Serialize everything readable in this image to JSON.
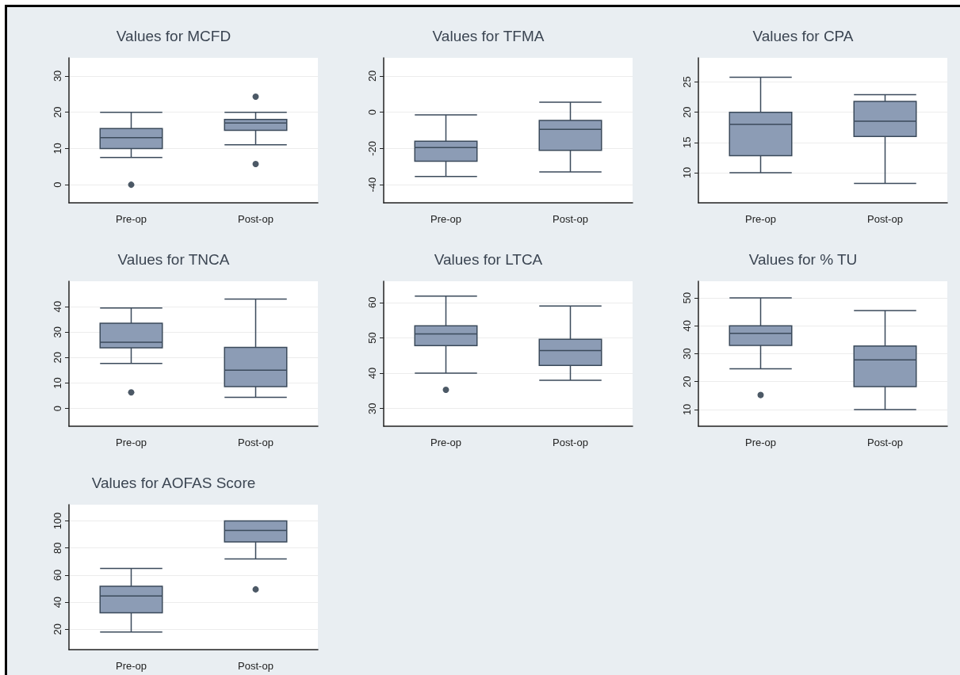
{
  "chart_data": [
    {
      "type": "box",
      "title": "Values for MCFD",
      "categories": [
        "Pre-op",
        "Post-op"
      ],
      "color": "#8c9cb5",
      "grid": "y",
      "ylim": [
        -5,
        35
      ],
      "yticks": [
        0,
        10,
        20,
        30
      ],
      "boxes": [
        {
          "low": 7.5,
          "q1": 10,
          "median": 13,
          "q3": 15.5,
          "high": 20,
          "outliers": [
            0
          ]
        },
        {
          "low": 11,
          "q1": 15,
          "median": 17,
          "q3": 18,
          "high": 20,
          "outliers": [
            24.3,
            5.7
          ]
        }
      ]
    },
    {
      "type": "box",
      "title": "Values for TFMA",
      "categories": [
        "Pre-op",
        "Post-op"
      ],
      "color": "#8c9cb5",
      "grid": "y",
      "ylim": [
        -50,
        30
      ],
      "yticks": [
        -40,
        -20,
        0,
        20
      ],
      "boxes": [
        {
          "low": -35.5,
          "q1": -27,
          "median": -19.5,
          "q3": -16,
          "high": -1.5
        },
        {
          "low": -33,
          "q1": -21,
          "median": -9.5,
          "q3": -4.5,
          "high": 5.5
        }
      ]
    },
    {
      "type": "box",
      "title": "Values for CPA",
      "categories": [
        "Pre-op",
        "Post-op"
      ],
      "color": "#8c9cb5",
      "grid": "y",
      "ylim": [
        5,
        29
      ],
      "yticks": [
        10,
        15,
        20,
        25
      ],
      "boxes": [
        {
          "low": 10,
          "q1": 12.8,
          "median": 18,
          "q3": 20,
          "high": 25.8
        },
        {
          "low": 8.2,
          "q1": 16,
          "median": 18.5,
          "q3": 21.8,
          "high": 22.9
        }
      ]
    },
    {
      "type": "box",
      "title": "Values for TNCA",
      "categories": [
        "Pre-op",
        "Post-op"
      ],
      "color": "#8c9cb5",
      "grid": "y",
      "ylim": [
        -7,
        50
      ],
      "yticks": [
        0,
        10,
        20,
        30,
        40
      ],
      "boxes": [
        {
          "low": 17.7,
          "q1": 23.8,
          "median": 26,
          "q3": 33.5,
          "high": 39.5,
          "outliers": [
            6.3
          ]
        },
        {
          "low": 4.4,
          "q1": 8.6,
          "median": 15,
          "q3": 24,
          "high": 43
        }
      ]
    },
    {
      "type": "box",
      "title": "Values for LTCA",
      "categories": [
        "Pre-op",
        "Post-op"
      ],
      "color": "#8c9cb5",
      "grid": "y",
      "ylim": [
        25,
        66
      ],
      "yticks": [
        30,
        40,
        50,
        60
      ],
      "boxes": [
        {
          "low": 40,
          "q1": 47.8,
          "median": 51.1,
          "q3": 53.4,
          "high": 61.8,
          "outliers": [
            35.3
          ]
        },
        {
          "low": 38,
          "q1": 42.2,
          "median": 46.4,
          "q3": 49.6,
          "high": 59
        }
      ]
    },
    {
      "type": "box",
      "title": "Values for % TU",
      "categories": [
        "Pre-op",
        "Post-op"
      ],
      "color": "#8c9cb5",
      "grid": "y",
      "ylim": [
        4,
        56
      ],
      "yticks": [
        10,
        20,
        30,
        40,
        50
      ],
      "boxes": [
        {
          "low": 24.6,
          "q1": 33,
          "median": 37.3,
          "q3": 40,
          "high": 50,
          "outliers": [
            15.2
          ]
        },
        {
          "low": 10,
          "q1": 18.2,
          "median": 27.8,
          "q3": 32.8,
          "high": 45.5
        }
      ]
    },
    {
      "type": "box",
      "title": "Values for AOFAS Score",
      "categories": [
        "Pre-op",
        "Post-op"
      ],
      "color": "#8c9cb5",
      "grid": "y",
      "ylim": [
        5,
        112
      ],
      "yticks": [
        20,
        40,
        60,
        80,
        100
      ],
      "boxes": [
        {
          "low": 18,
          "q1": 32.2,
          "median": 44.6,
          "q3": 51.8,
          "high": 65
        },
        {
          "low": 72,
          "q1": 84.5,
          "median": 93,
          "q3": 100,
          "high": 100,
          "outliers": [
            49.5
          ]
        }
      ]
    }
  ]
}
